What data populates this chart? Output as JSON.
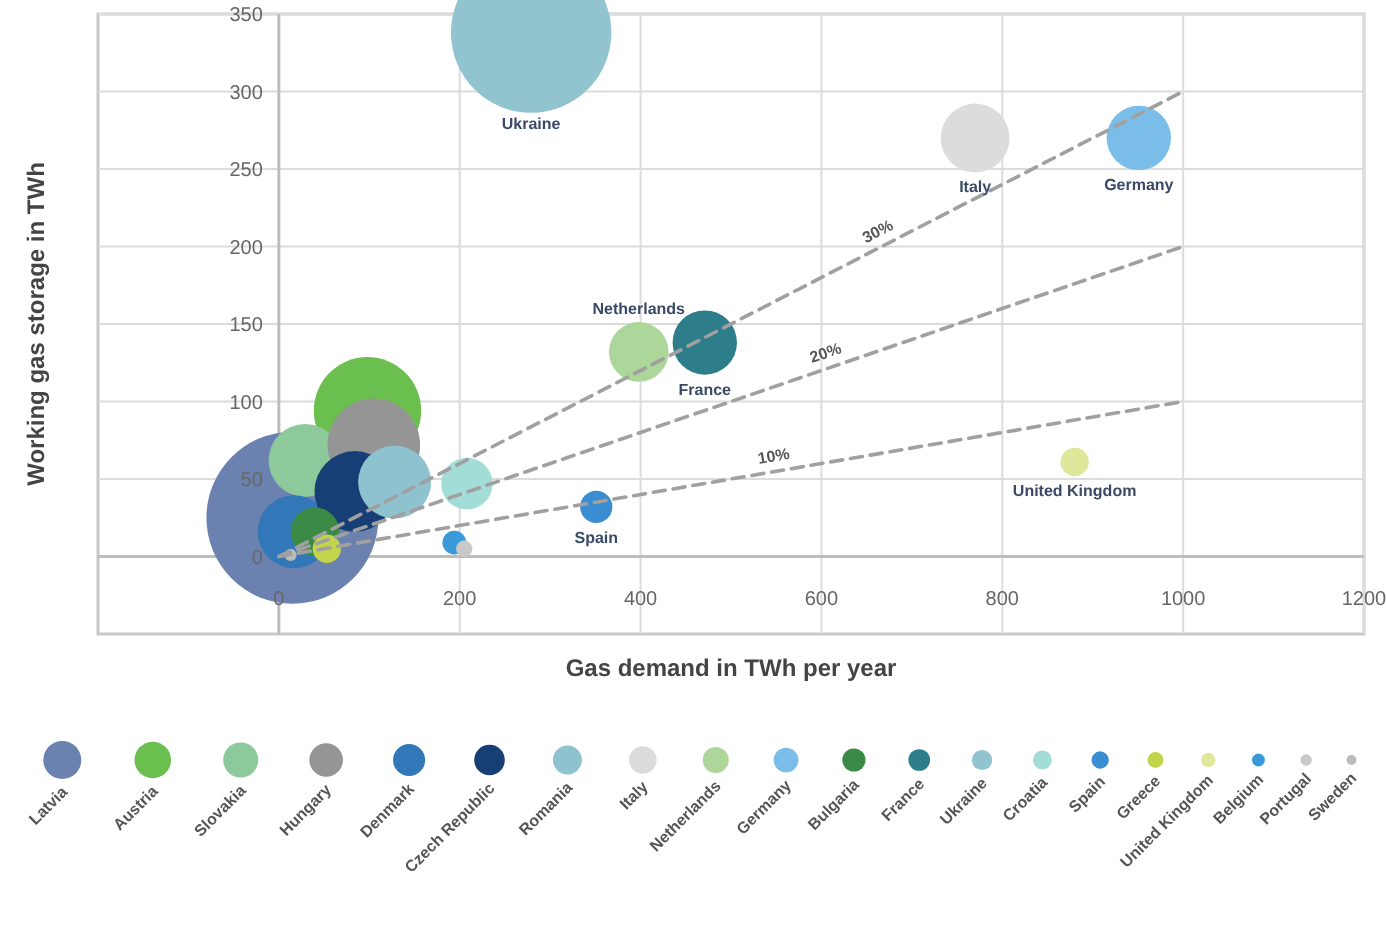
{
  "chart_data": {
    "type": "bubble",
    "xlabel": "Gas demand in TWh per year",
    "ylabel": "Working gas storage in TWh",
    "xlim": [
      -200,
      1200
    ],
    "xticks": [
      0,
      200,
      400,
      600,
      800,
      1000,
      1200
    ],
    "ylim": [
      -50,
      350
    ],
    "yticks": [
      0,
      50,
      100,
      150,
      200,
      250,
      300,
      350
    ],
    "grid": true,
    "legend": "bottom",
    "marker": "circle",
    "series": [
      {
        "name": "Latvia",
        "color": "#6b82b0",
        "x": [
          15
        ],
        "values": [
          25
        ],
        "sizes": [
          1
        ]
      },
      {
        "name": "Austria",
        "color": "#6bbf4f",
        "x": [
          98
        ],
        "values": [
          94
        ],
        "sizes": [
          0.39
        ]
      },
      {
        "name": "Slovakia",
        "color": "#8ec99b",
        "x": [
          29
        ],
        "values": [
          62
        ],
        "sizes": [
          0.18
        ]
      },
      {
        "name": "Hungary",
        "color": "#959595",
        "x": [
          105
        ],
        "values": [
          72
        ],
        "sizes": [
          0.29
        ]
      },
      {
        "name": "Denmark",
        "color": "#3277b8",
        "x": [
          17
        ],
        "values": [
          16
        ],
        "sizes": [
          0.18
        ]
      },
      {
        "name": "Czech Republic",
        "color": "#173e75",
        "x": [
          84
        ],
        "values": [
          42
        ],
        "sizes": [
          0.22
        ]
      },
      {
        "name": "Romania",
        "color": "#8fc2cf",
        "x": [
          128
        ],
        "values": [
          48
        ],
        "sizes": [
          0.18
        ]
      },
      {
        "name": "Italy",
        "color": "#dcdcdc",
        "x": [
          770
        ],
        "values": [
          270
        ],
        "sizes": [
          0.16
        ]
      },
      {
        "name": "Netherlands",
        "color": "#acd69a",
        "x": [
          398
        ],
        "values": [
          132
        ],
        "sizes": [
          0.12
        ]
      },
      {
        "name": "Germany",
        "color": "#79bde8",
        "x": [
          951
        ],
        "values": [
          270
        ],
        "sizes": [
          0.14
        ]
      },
      {
        "name": "Bulgaria",
        "color": "#3a8a45",
        "x": [
          40
        ],
        "values": [
          16
        ],
        "sizes": [
          0.08
        ]
      },
      {
        "name": "France",
        "color": "#2e7d8a",
        "x": [
          471
        ],
        "values": [
          138
        ],
        "sizes": [
          0.14
        ]
      },
      {
        "name": "Ukraine",
        "color": "#91c4cf",
        "x": [
          279
        ],
        "values": [
          338
        ],
        "sizes": [
          0.87
        ]
      },
      {
        "name": "Croatia",
        "color": "#a3ddd8",
        "x": [
          208
        ],
        "values": [
          47
        ],
        "sizes": [
          0.09
        ]
      },
      {
        "name": "Spain",
        "color": "#3a8dd0",
        "x": [
          351
        ],
        "values": [
          32
        ],
        "sizes": [
          0.035
        ]
      },
      {
        "name": "Greece",
        "color": "#c1d44a",
        "x": [
          53
        ],
        "values": [
          5
        ],
        "sizes": [
          0.027
        ]
      },
      {
        "name": "United Kingdom",
        "color": "#dfe89a",
        "x": [
          880
        ],
        "values": [
          61
        ],
        "sizes": [
          0.027
        ]
      },
      {
        "name": "Belgium",
        "color": "#3a9ad9",
        "x": [
          194
        ],
        "values": [
          9
        ],
        "sizes": [
          0.019
        ]
      },
      {
        "name": "Portugal",
        "color": "#c8c8c8",
        "x": [
          205
        ],
        "values": [
          5
        ],
        "sizes": [
          0.009
        ]
      },
      {
        "name": "Sweden",
        "color": "#bbbbbb",
        "x": [
          13
        ],
        "values": [
          1
        ],
        "sizes": [
          0.005
        ]
      },
      {
        "name": "10%",
        "type": "line",
        "marker": "none",
        "color": "#a0a0a0",
        "line_style": "dashed",
        "x": [
          0,
          1000
        ],
        "values": [
          0,
          100
        ]
      },
      {
        "name": "20%",
        "type": "line",
        "marker": "none",
        "color": "#a0a0a0",
        "line_style": "dashed",
        "x": [
          0,
          1000
        ],
        "values": [
          0,
          200
        ]
      },
      {
        "name": "30%",
        "type": "line",
        "marker": "none",
        "color": "#a0a0a0",
        "line_style": "dashed",
        "x": [
          0,
          1000
        ],
        "values": [
          0,
          300
        ]
      }
    ],
    "annotations": [
      {
        "text": "Ukraine",
        "x": 279,
        "y": 286
      },
      {
        "text": "Italy",
        "x": 770,
        "y": 270
      },
      {
        "text": "Germany",
        "x": 951,
        "y": 270
      },
      {
        "text": "France",
        "x": 471,
        "y": 138
      },
      {
        "text": "Netherlands",
        "x": 398,
        "y": 132
      },
      {
        "text": "Spain",
        "x": 351,
        "y": 32
      },
      {
        "text": "United Kingdom",
        "x": 880,
        "y": 61
      }
    ]
  }
}
